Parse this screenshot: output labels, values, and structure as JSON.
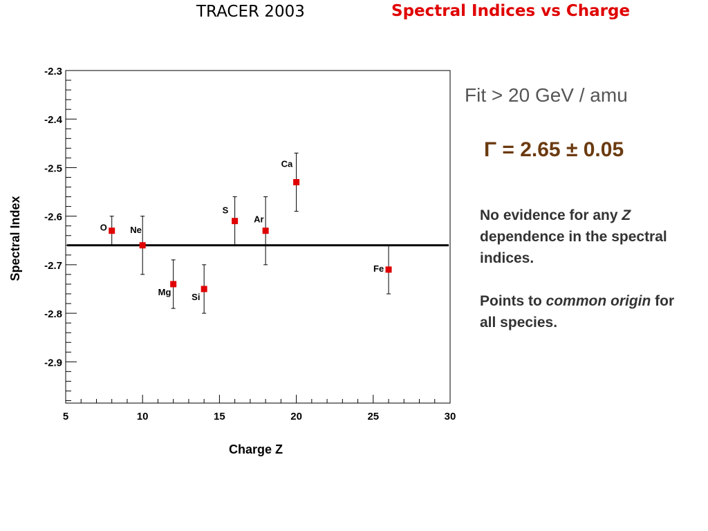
{
  "header": {
    "left_title": "TRACER 2003",
    "right_title": "Spectral Indices vs Charge",
    "right_title_color": "#e00000"
  },
  "annotations": {
    "fit_label": "Fit > 20 GeV / amu",
    "gamma_label": "Γ = 2.65 ± 0.05",
    "gamma_color": "#6b3a10",
    "note1_a": "No evidence for any ",
    "note1_z": "Z",
    "note1_b": " dependence in the spectral indices.",
    "note2_a": "Points to ",
    "note2_em": "common origin",
    "note2_b": " for all species."
  },
  "chart_data": {
    "type": "scatter",
    "title": "",
    "xlabel": "Charge Z",
    "ylabel": "Spectral Index",
    "xlim": [
      5,
      30
    ],
    "ylim": [
      -2.985,
      -2.3
    ],
    "x_ticks": [
      5,
      10,
      15,
      20,
      25,
      30
    ],
    "y_ticks": [
      -2.3,
      -2.4,
      -2.5,
      -2.6,
      -2.7,
      -2.8,
      -2.9
    ],
    "grid": false,
    "marker_color": "#e00000",
    "fit_line": -2.66,
    "points": [
      {
        "label": "O",
        "x": 8,
        "y": -2.63,
        "ylow": -2.66,
        "yhigh": -2.6
      },
      {
        "label": "Ne",
        "x": 10,
        "y": -2.66,
        "ylow": -2.72,
        "yhigh": -2.6
      },
      {
        "label": "Mg",
        "x": 12,
        "y": -2.74,
        "ylow": -2.79,
        "yhigh": -2.69
      },
      {
        "label": "Si",
        "x": 14,
        "y": -2.75,
        "ylow": -2.8,
        "yhigh": -2.7
      },
      {
        "label": "S",
        "x": 16,
        "y": -2.61,
        "ylow": -2.66,
        "yhigh": -2.56
      },
      {
        "label": "Ar",
        "x": 18,
        "y": -2.63,
        "ylow": -2.7,
        "yhigh": -2.56
      },
      {
        "label": "Ca",
        "x": 20,
        "y": -2.53,
        "ylow": -2.59,
        "yhigh": -2.47
      },
      {
        "label": "Fe",
        "x": 26,
        "y": -2.71,
        "ylow": -2.76,
        "yhigh": -2.66
      }
    ]
  }
}
